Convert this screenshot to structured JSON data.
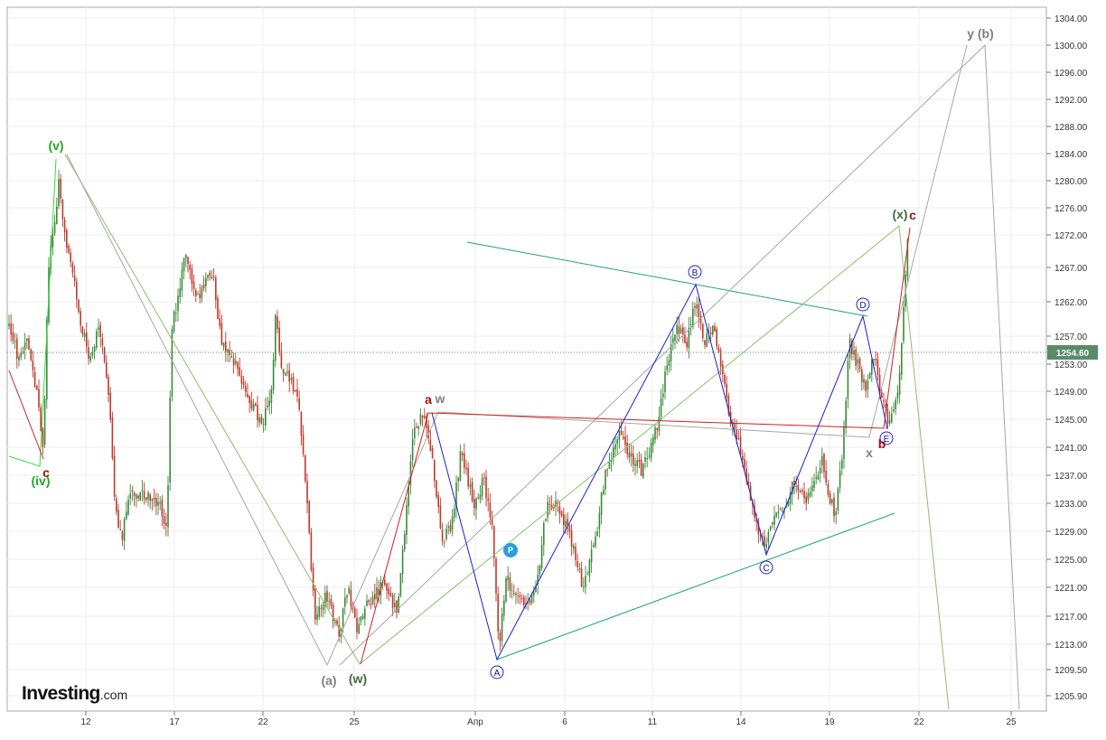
{
  "chart_data": {
    "type": "candlestick",
    "title": "",
    "xlabel": "",
    "ylabel": "",
    "ylim": [
      1203.5,
      1306.5
    ],
    "x_tick_labels": [
      "12",
      "17",
      "22",
      "25",
      "Апр",
      "6",
      "11",
      "14",
      "19",
      "22",
      "25"
    ],
    "y_tick_labels": [
      "1304.00",
      "1300.00",
      "1296.00",
      "1292.00",
      "1288.00",
      "1284.00",
      "1280.00",
      "1276.00",
      "1272.00",
      "1267.00",
      "1262.00",
      "1257.00",
      "1253.00",
      "1249.00",
      "1245.00",
      "1241.00",
      "1237.00",
      "1233.00",
      "1229.00",
      "1225.00",
      "1221.00",
      "1217.00",
      "1213.00",
      "1209.50",
      "1205.90"
    ],
    "current_price": "1254.60",
    "grid": true,
    "colors": {
      "up_candle": "#3a8a3a",
      "down_candle": "#c0392b",
      "price_tag": "#5b8a68",
      "wave_red": "#d02020",
      "wave_blue": "#1f1fd0",
      "wave_gray": "#a6a6a6",
      "wave_green_light": "#8ac06a",
      "wave_green_bright": "#33dd33",
      "channel_teal": "#20a08a",
      "label_green": "#22aa22",
      "label_darkgreen": "#3c6e3c",
      "label_darkred": "#a01010",
      "label_gray": "#808080",
      "label_blue": "#1010a0",
      "pivot_marker": "#2d9be0"
    },
    "wave_labels": [
      "(v)",
      "(iv)",
      "c",
      "a",
      "w",
      "(a)",
      "(w)",
      "A",
      "B",
      "C",
      "D",
      "E",
      "x",
      "b",
      "(x)",
      "c",
      "y (b)",
      "P"
    ]
  },
  "branding": {
    "logo_main": "Investing",
    "logo_suffix": ".com"
  }
}
